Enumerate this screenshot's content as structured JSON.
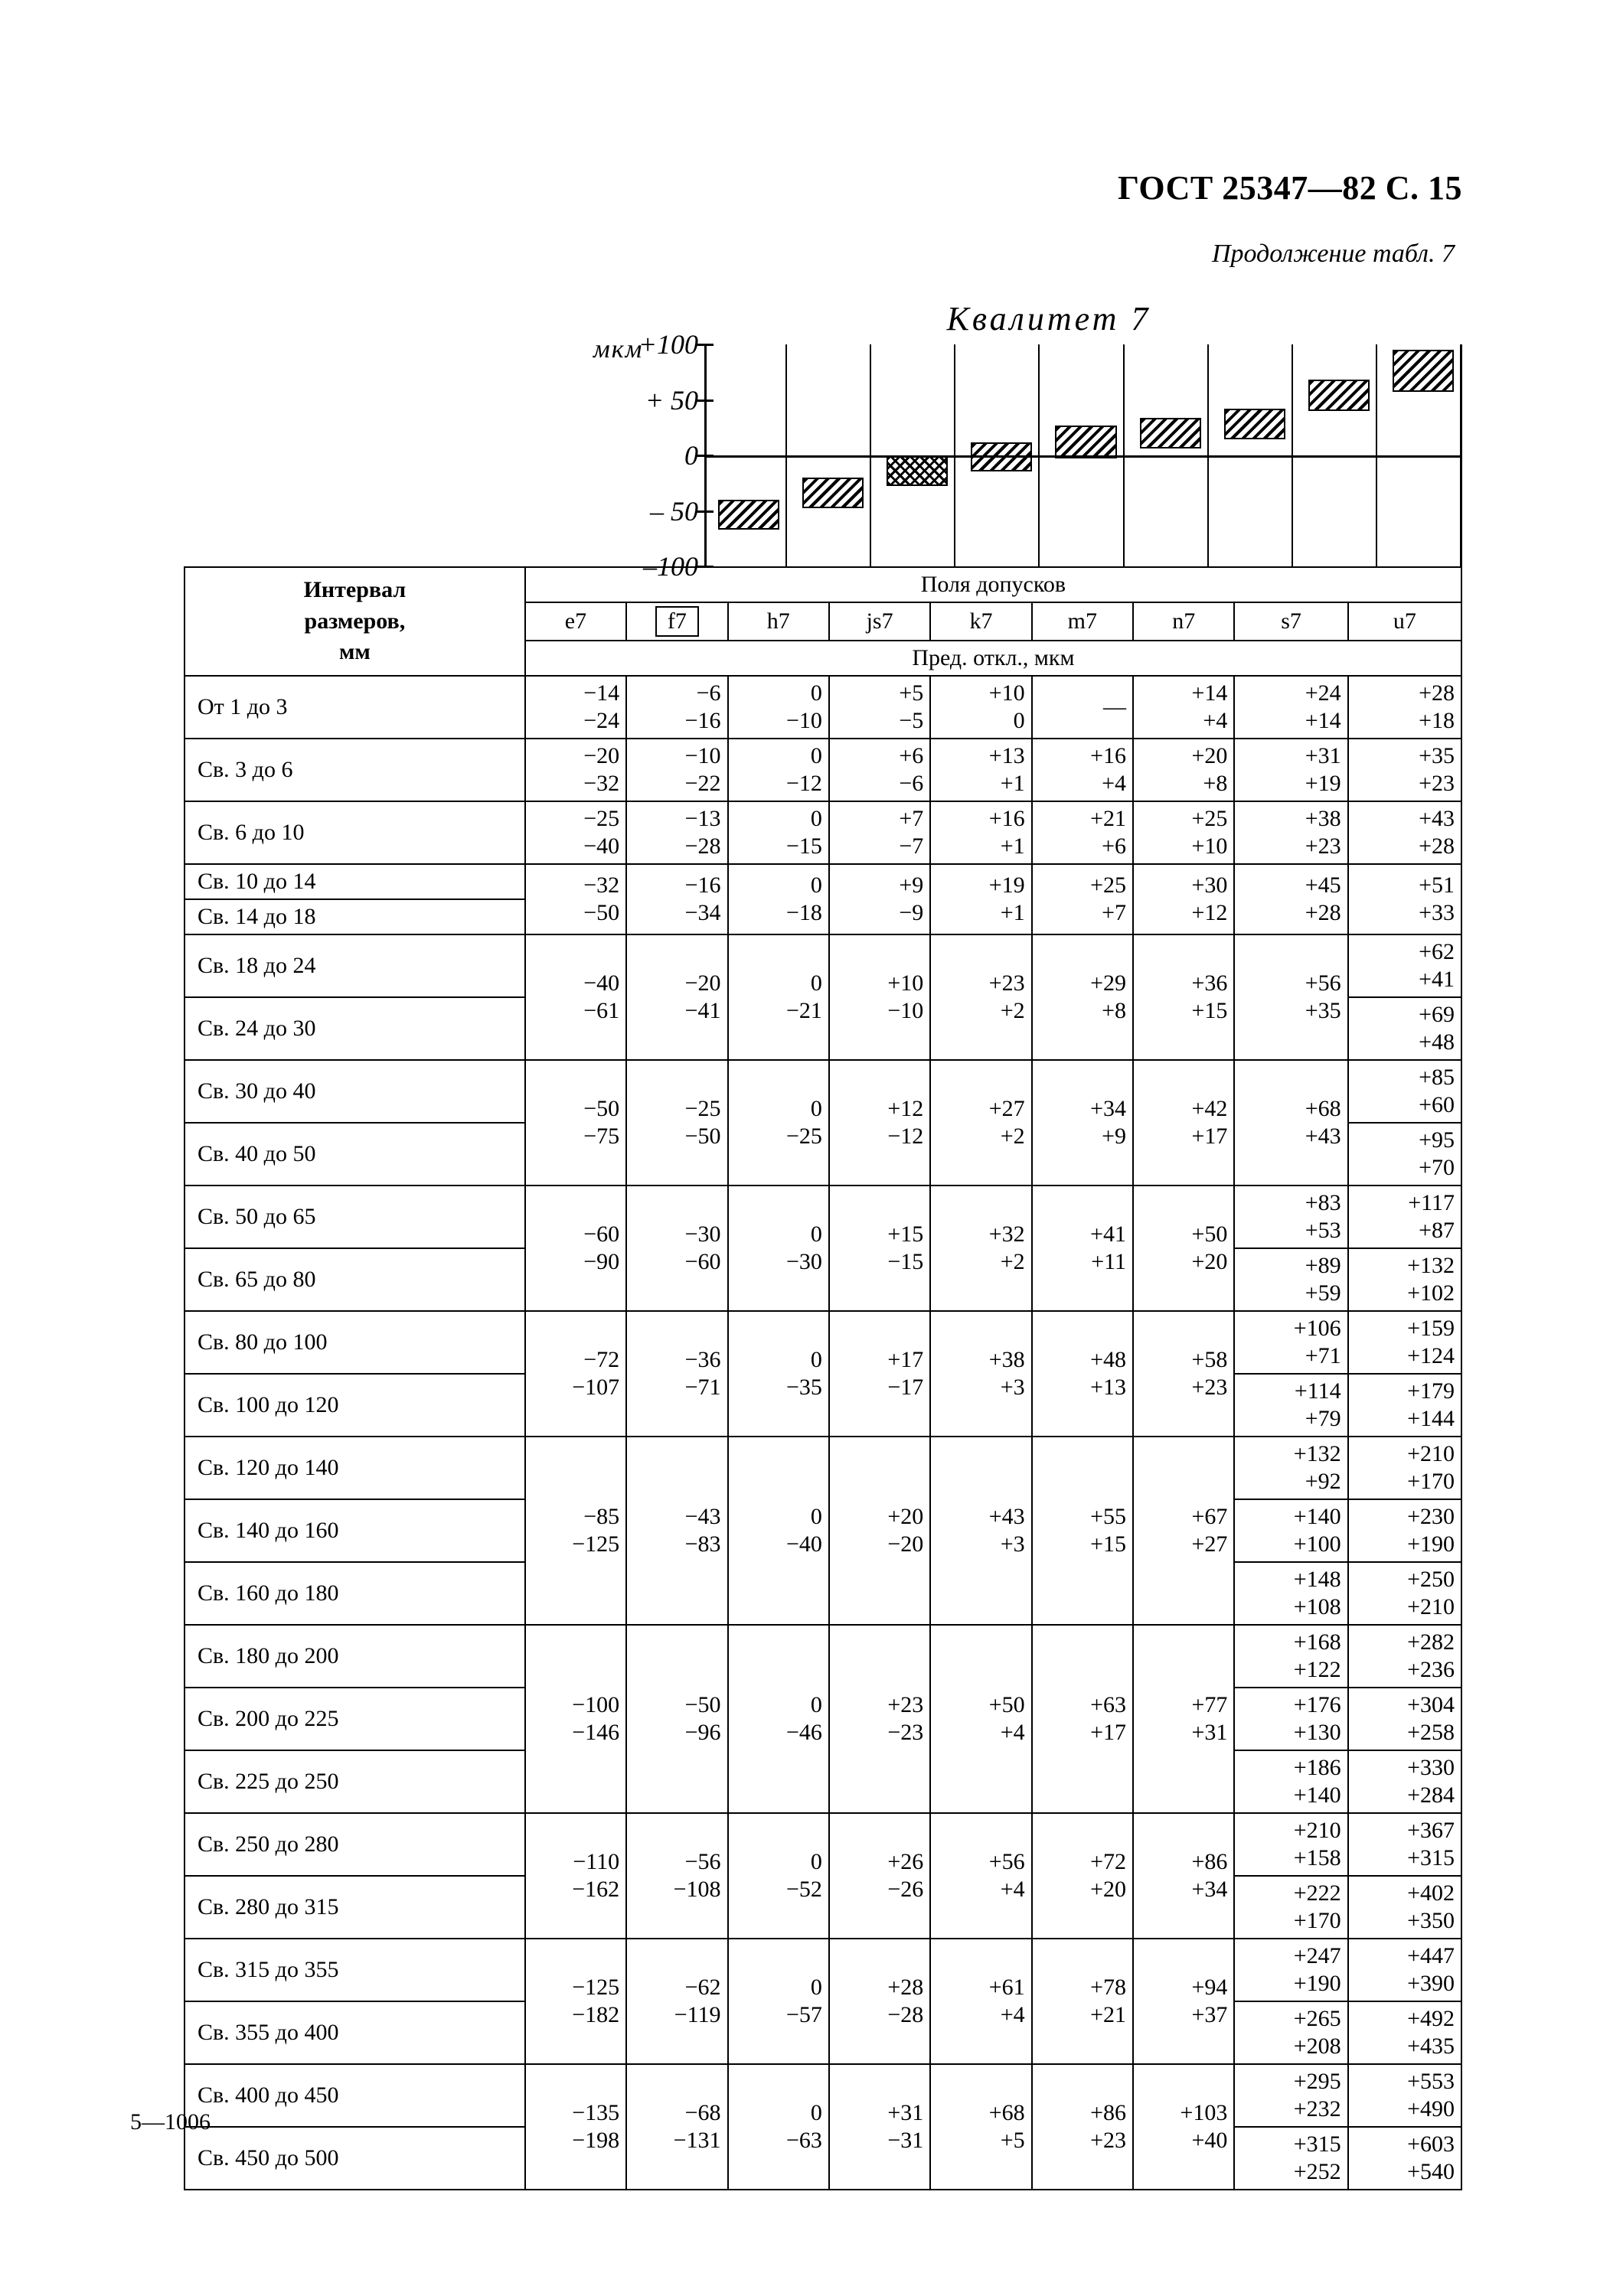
{
  "header": {
    "standard": "ГОСТ 25347—82 С. 15"
  },
  "continuation": "Продолжение табл. 7",
  "chart": {
    "title": "Квалитет 7",
    "ylabel": "мкм",
    "ymin": -100,
    "ymax": 100,
    "ystep": 50,
    "ticks": [
      "+100",
      "+ 50",
      "0",
      "– 50",
      "–100"
    ],
    "bars": [
      {
        "lo": -64,
        "hi": -40,
        "cross": false
      },
      {
        "lo": -45,
        "hi": -20,
        "cross": false
      },
      {
        "lo": -25,
        "hi": 0,
        "cross": true
      },
      {
        "lo": -12,
        "hi": 12,
        "cross": false
      },
      {
        "lo": 0,
        "hi": 27,
        "cross": false
      },
      {
        "lo": 9,
        "hi": 34,
        "cross": false
      },
      {
        "lo": 17,
        "hi": 42,
        "cross": false
      },
      {
        "lo": 43,
        "hi": 68,
        "cross": false
      },
      {
        "lo": 60,
        "hi": 95,
        "cross": false
      }
    ]
  },
  "table": {
    "interval_header": "Интервал\nразмеров,\nмм",
    "fields_header": "Поля допусков",
    "dev_header": "Пред. откл., мкм",
    "fields": [
      "e7",
      "f7",
      "h7",
      "js7",
      "k7",
      "m7",
      "n7",
      "s7",
      "u7"
    ]
  },
  "rows": [
    {
      "label": "От 1 до 3",
      "e7": "−14\n−24",
      "f7": "−6\n−16",
      "h7": "0\n−10",
      "js7": "+5\n−5",
      "k7": "+10\n0",
      "m7": "—",
      "n7": "+14\n+4",
      "s7": "+24\n+14",
      "u7": "+28\n+18"
    },
    {
      "label": "Св. 3 до 6",
      "e7": "−20\n−32",
      "f7": "−10\n−22",
      "h7": "0\n−12",
      "js7": "+6\n−6",
      "k7": "+13\n+1",
      "m7": "+16\n+4",
      "n7": "+20\n+8",
      "s7": "+31\n+19",
      "u7": "+35\n+23"
    },
    {
      "label": "Св. 6 до 10",
      "e7": "−25\n−40",
      "f7": "−13\n−28",
      "h7": "0\n−15",
      "js7": "+7\n−7",
      "k7": "+16\n+1",
      "m7": "+21\n+6",
      "n7": "+25\n+10",
      "s7": "+38\n+23",
      "u7": "+43\n+28"
    },
    {
      "label": "Св. 10 до 14",
      "merge": "top",
      "shared": {
        "e7": "−32\n−50",
        "f7": "−16\n−34",
        "h7": "0\n−18",
        "js7": "+9\n−9",
        "k7": "+19\n+1",
        "m7": "+25\n+7",
        "n7": "+30\n+12",
        "s7": "+45\n+28",
        "u7": "+51\n+33"
      }
    },
    {
      "label": "Св. 14 до 18",
      "merge": "bottom"
    },
    {
      "label": "Св. 18 до 24",
      "merge": "top",
      "shared": {
        "e7": "−40\n−61",
        "f7": "−20\n−41",
        "h7": "0\n−21",
        "js7": "+10\n−10",
        "k7": "+23\n+2",
        "m7": "+29\n+8",
        "n7": "+36\n+15",
        "s7": "+56\n+35"
      },
      "own": {
        "u7": "+62\n+41"
      }
    },
    {
      "label": "Св. 24 до 30",
      "merge": "bottom",
      "own": {
        "u7": "+69\n+48"
      }
    },
    {
      "label": "Св. 30 до 40",
      "merge": "top",
      "shared": {
        "e7": "−50\n−75",
        "f7": "−25\n−50",
        "h7": "0\n−25",
        "js7": "+12\n−12",
        "k7": "+27\n+2",
        "m7": "+34\n+9",
        "n7": "+42\n+17",
        "s7": "+68\n+43"
      },
      "own": {
        "u7": "+85\n+60"
      }
    },
    {
      "label": "Св. 40 до 50",
      "merge": "bottom",
      "own": {
        "u7": "+95\n+70"
      }
    },
    {
      "label": "Св. 50 до 65",
      "merge": "top",
      "shared": {
        "e7": "−60\n−90",
        "f7": "−30\n−60",
        "h7": "0\n−30",
        "js7": "+15\n−15",
        "k7": "+32\n+2",
        "m7": "+41\n+11",
        "n7": "+50\n+20"
      },
      "own": {
        "s7": "+83\n+53",
        "u7": "+117\n+87"
      }
    },
    {
      "label": "Св. 65 до 80",
      "merge": "bottom",
      "own": {
        "s7": "+89\n+59",
        "u7": "+132\n+102"
      }
    },
    {
      "label": "Св. 80 до 100",
      "merge": "top",
      "shared": {
        "e7": "−72\n−107",
        "f7": "−36\n−71",
        "h7": "0\n−35",
        "js7": "+17\n−17",
        "k7": "+38\n+3",
        "m7": "+48\n+13",
        "n7": "+58\n+23"
      },
      "own": {
        "s7": "+106\n+71",
        "u7": "+159\n+124"
      }
    },
    {
      "label": "Св. 100 до 120",
      "merge": "bottom",
      "own": {
        "s7": "+114\n+79",
        "u7": "+179\n+144"
      }
    },
    {
      "label": "Св. 120 до 140",
      "merge": "top3",
      "shared": {
        "e7": "−85\n−125",
        "f7": "−43\n−83",
        "h7": "0\n−40",
        "js7": "+20\n−20",
        "k7": "+43\n+3",
        "m7": "+55\n+15",
        "n7": "+67\n+27"
      },
      "own": {
        "s7": "+132\n+92",
        "u7": "+210\n+170"
      }
    },
    {
      "label": "Св. 140 до 160",
      "merge": "mid3",
      "own": {
        "s7": "+140\n+100",
        "u7": "+230\n+190"
      }
    },
    {
      "label": "Св. 160 до 180",
      "merge": "bot3",
      "own": {
        "s7": "+148\n+108",
        "u7": "+250\n+210"
      }
    },
    {
      "label": "Св. 180 до 200",
      "merge": "top3",
      "shared": {
        "e7": "−100\n−146",
        "f7": "−50\n−96",
        "h7": "0\n−46",
        "js7": "+23\n−23",
        "k7": "+50\n+4",
        "m7": "+63\n+17",
        "n7": "+77\n+31"
      },
      "own": {
        "s7": "+168\n+122",
        "u7": "+282\n+236"
      }
    },
    {
      "label": "Св. 200 до 225",
      "merge": "mid3",
      "own": {
        "s7": "+176\n+130",
        "u7": "+304\n+258"
      }
    },
    {
      "label": "Св. 225 до 250",
      "merge": "bot3",
      "own": {
        "s7": "+186\n+140",
        "u7": "+330\n+284"
      }
    },
    {
      "label": "Св. 250 до 280",
      "merge": "top",
      "shared": {
        "e7": "−110\n−162",
        "f7": "−56\n−108",
        "h7": "0\n−52",
        "js7": "+26\n−26",
        "k7": "+56\n+4",
        "m7": "+72\n+20",
        "n7": "+86\n+34"
      },
      "own": {
        "s7": "+210\n+158",
        "u7": "+367\n+315"
      }
    },
    {
      "label": "Св. 280 до 315",
      "merge": "bottom",
      "own": {
        "s7": "+222\n+170",
        "u7": "+402\n+350"
      }
    },
    {
      "label": "Св. 315 до 355",
      "merge": "top",
      "shared": {
        "e7": "−125\n−182",
        "f7": "−62\n−119",
        "h7": "0\n−57",
        "js7": "+28\n−28",
        "k7": "+61\n+4",
        "m7": "+78\n+21",
        "n7": "+94\n+37"
      },
      "own": {
        "s7": "+247\n+190",
        "u7": "+447\n+390"
      }
    },
    {
      "label": "Св. 355 до 400",
      "merge": "bottom",
      "own": {
        "s7": "+265\n+208",
        "u7": "+492\n+435"
      }
    },
    {
      "label": "Св. 400 до 450",
      "merge": "top",
      "shared": {
        "e7": "−135\n−198",
        "f7": "−68\n−131",
        "h7": "0\n−63",
        "js7": "+31\n−31",
        "k7": "+68\n+5",
        "m7": "+86\n+23",
        "n7": "+103\n+40"
      },
      "own": {
        "s7": "+295\n+232",
        "u7": "+553\n+490"
      }
    },
    {
      "label": "Св. 450 до 500",
      "merge": "bottom",
      "own": {
        "s7": "+315\n+252",
        "u7": "+603\n+540"
      }
    }
  ],
  "footer": "5—1006"
}
